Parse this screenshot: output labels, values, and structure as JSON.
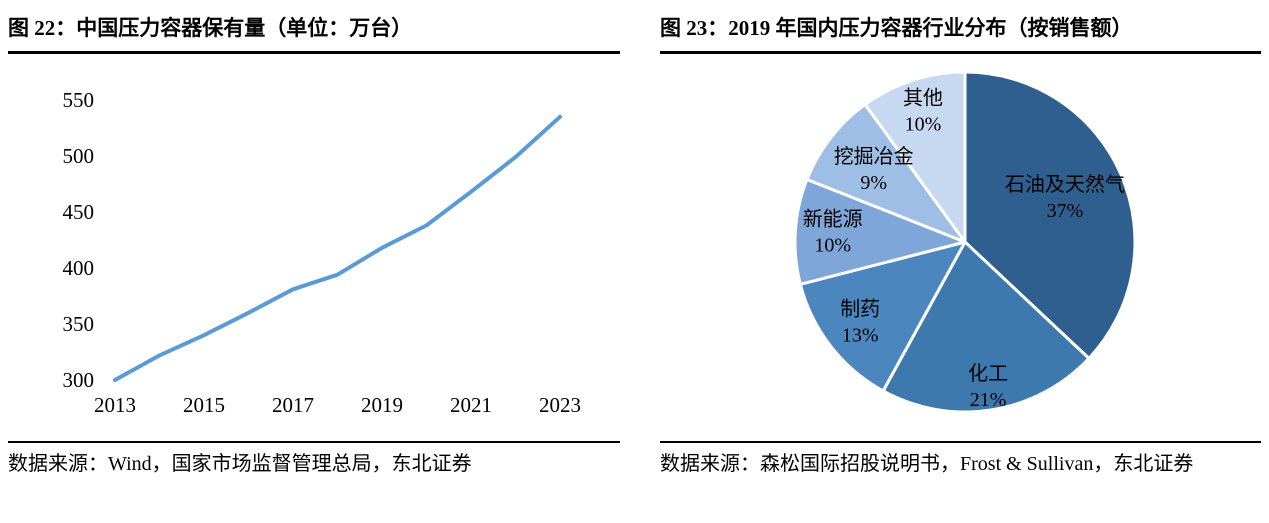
{
  "left": {
    "title": "图 22：中国压力容器保有量（单位：万台）",
    "source": "数据来源：Wind，国家市场监督管理总局，东北证券"
  },
  "right": {
    "title": "图 23：2019 年国内压力容器行业分布（按销售额）",
    "source": "数据来源：森松国际招股说明书，Frost & Sullivan，东北证券"
  },
  "chart_data": [
    {
      "type": "line",
      "title": "中国压力容器保有量（单位：万台）",
      "x": [
        2013,
        2014,
        2015,
        2016,
        2017,
        2018,
        2019,
        2020,
        2021,
        2022,
        2023
      ],
      "values": [
        300,
        322,
        340,
        360,
        381,
        394,
        418,
        438,
        468,
        499,
        535
      ],
      "xticks": [
        2013,
        2015,
        2017,
        2019,
        2021,
        2023
      ],
      "yticks": [
        300,
        350,
        400,
        450,
        500,
        550
      ],
      "ylim": [
        300,
        550
      ],
      "xlim": [
        2013,
        2023
      ],
      "line_color": "#5B9BD5",
      "grid": false,
      "legend": "none"
    },
    {
      "type": "pie",
      "title": "2019 年国内压力容器行业分布（按销售额）",
      "start_angle": 0,
      "direction": "clockwise",
      "slice_border_color": "#ffffff",
      "slices": [
        {
          "label": "石油及天然气",
          "pct_label": "37%",
          "value": 37,
          "color": "#2F5F8F",
          "label_r": 0.64
        },
        {
          "label": "化工",
          "pct_label": "21%",
          "value": 21,
          "color": "#3E79AE",
          "label_r": 0.87
        },
        {
          "label": "制药",
          "pct_label": "13%",
          "value": 13,
          "color": "#4C86BF",
          "label_r": 0.78
        },
        {
          "label": "新能源",
          "pct_label": "10%",
          "value": 10,
          "color": "#7EA6D8",
          "label_r": 0.78
        },
        {
          "label": "挖掘冶金",
          "pct_label": "9%",
          "value": 9,
          "color": "#9FBEE6",
          "label_r": 0.68
        },
        {
          "label": "其他",
          "pct_label": "10%",
          "value": 10,
          "color": "#C6D9F1",
          "label_r": 0.8
        }
      ]
    }
  ]
}
